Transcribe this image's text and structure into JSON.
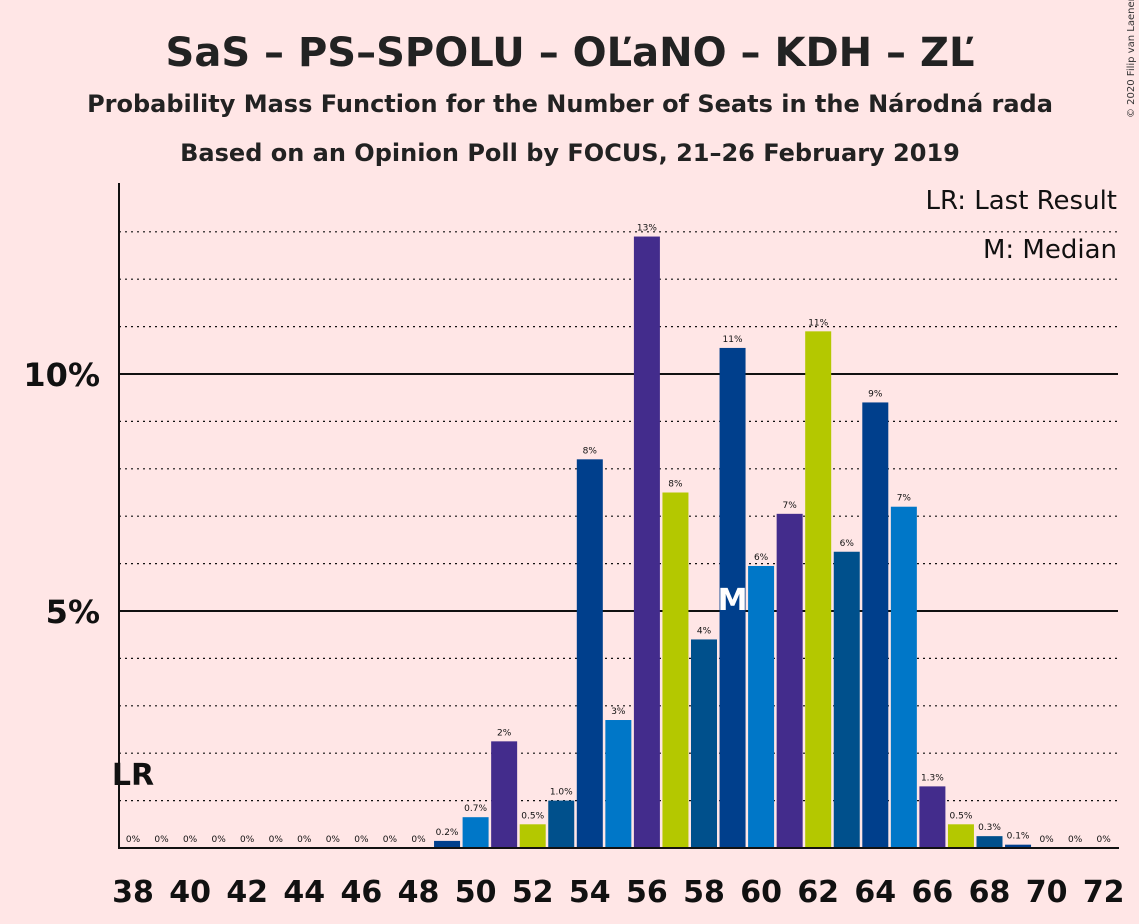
{
  "title": "SaS – PS–SPOLU – OĽaNO – KDH – ZĽ",
  "subtitle1": "Probability Mass Function for the Number of Seats in the Národná rada",
  "subtitle2": "Based on an Opinion Poll by FOCUS, 21–26 February 2019",
  "copyright": "© 2020 Filip van Laenen",
  "legend": {
    "lr": "LR: Last Result",
    "m": "M: Median"
  },
  "markers": {
    "lr_label": "LR",
    "median_label": "M",
    "last_result_seat": 38,
    "median_seat": 59
  },
  "colors": {
    "background": "#ffe6e6",
    "palette": [
      "#003f8c",
      "#0077c8",
      "#432c8c",
      "#b4c800",
      "#00508c"
    ]
  },
  "chart_data": {
    "type": "bar",
    "x": [
      38,
      39,
      40,
      41,
      42,
      43,
      44,
      45,
      46,
      47,
      48,
      49,
      50,
      51,
      52,
      53,
      54,
      55,
      56,
      57,
      58,
      59,
      60,
      61,
      62,
      63,
      64,
      65,
      66,
      67,
      68,
      69,
      70,
      71,
      72
    ],
    "values": [
      0,
      0,
      0,
      0,
      0,
      0,
      0,
      0,
      0,
      0,
      0,
      0.15,
      0.65,
      2.25,
      0.5,
      1.0,
      8.2,
      2.7,
      12.9,
      7.5,
      4.4,
      10.55,
      5.95,
      7.05,
      10.9,
      6.25,
      9.4,
      7.2,
      1.3,
      0.5,
      0.25,
      0.07,
      0,
      0,
      0
    ],
    "data_labels": [
      "0%",
      "0%",
      "0%",
      "0%",
      "0%",
      "0%",
      "0%",
      "0%",
      "0%",
      "0%",
      "0%",
      "0.2%",
      "0.7%",
      "2%",
      "0.5%",
      "1.0%",
      "8%",
      "3%",
      "13%",
      "8%",
      "4%",
      "11%",
      "6%",
      "7%",
      "11%",
      "6%",
      "9%",
      "7%",
      "1.3%",
      "0.5%",
      "0.3%",
      "0.1%",
      "0%",
      "0%",
      "0%"
    ],
    "color_index": [
      0,
      1,
      2,
      3,
      4,
      0,
      1,
      2,
      3,
      4,
      4,
      0,
      1,
      2,
      3,
      4,
      0,
      1,
      2,
      3,
      4,
      0,
      1,
      2,
      3,
      4,
      0,
      1,
      2,
      3,
      4,
      0,
      1,
      2,
      3
    ],
    "x_ticks": [
      "38",
      "40",
      "42",
      "44",
      "46",
      "48",
      "50",
      "52",
      "54",
      "56",
      "58",
      "60",
      "62",
      "64",
      "66",
      "68",
      "70",
      "72"
    ],
    "y_ticks": [
      {
        "value": 5,
        "label": "5%"
      },
      {
        "value": 10,
        "label": "10%"
      }
    ],
    "ylim": [
      0,
      14
    ],
    "grid": "dotted every 1%, solid at 5% and 10%"
  }
}
